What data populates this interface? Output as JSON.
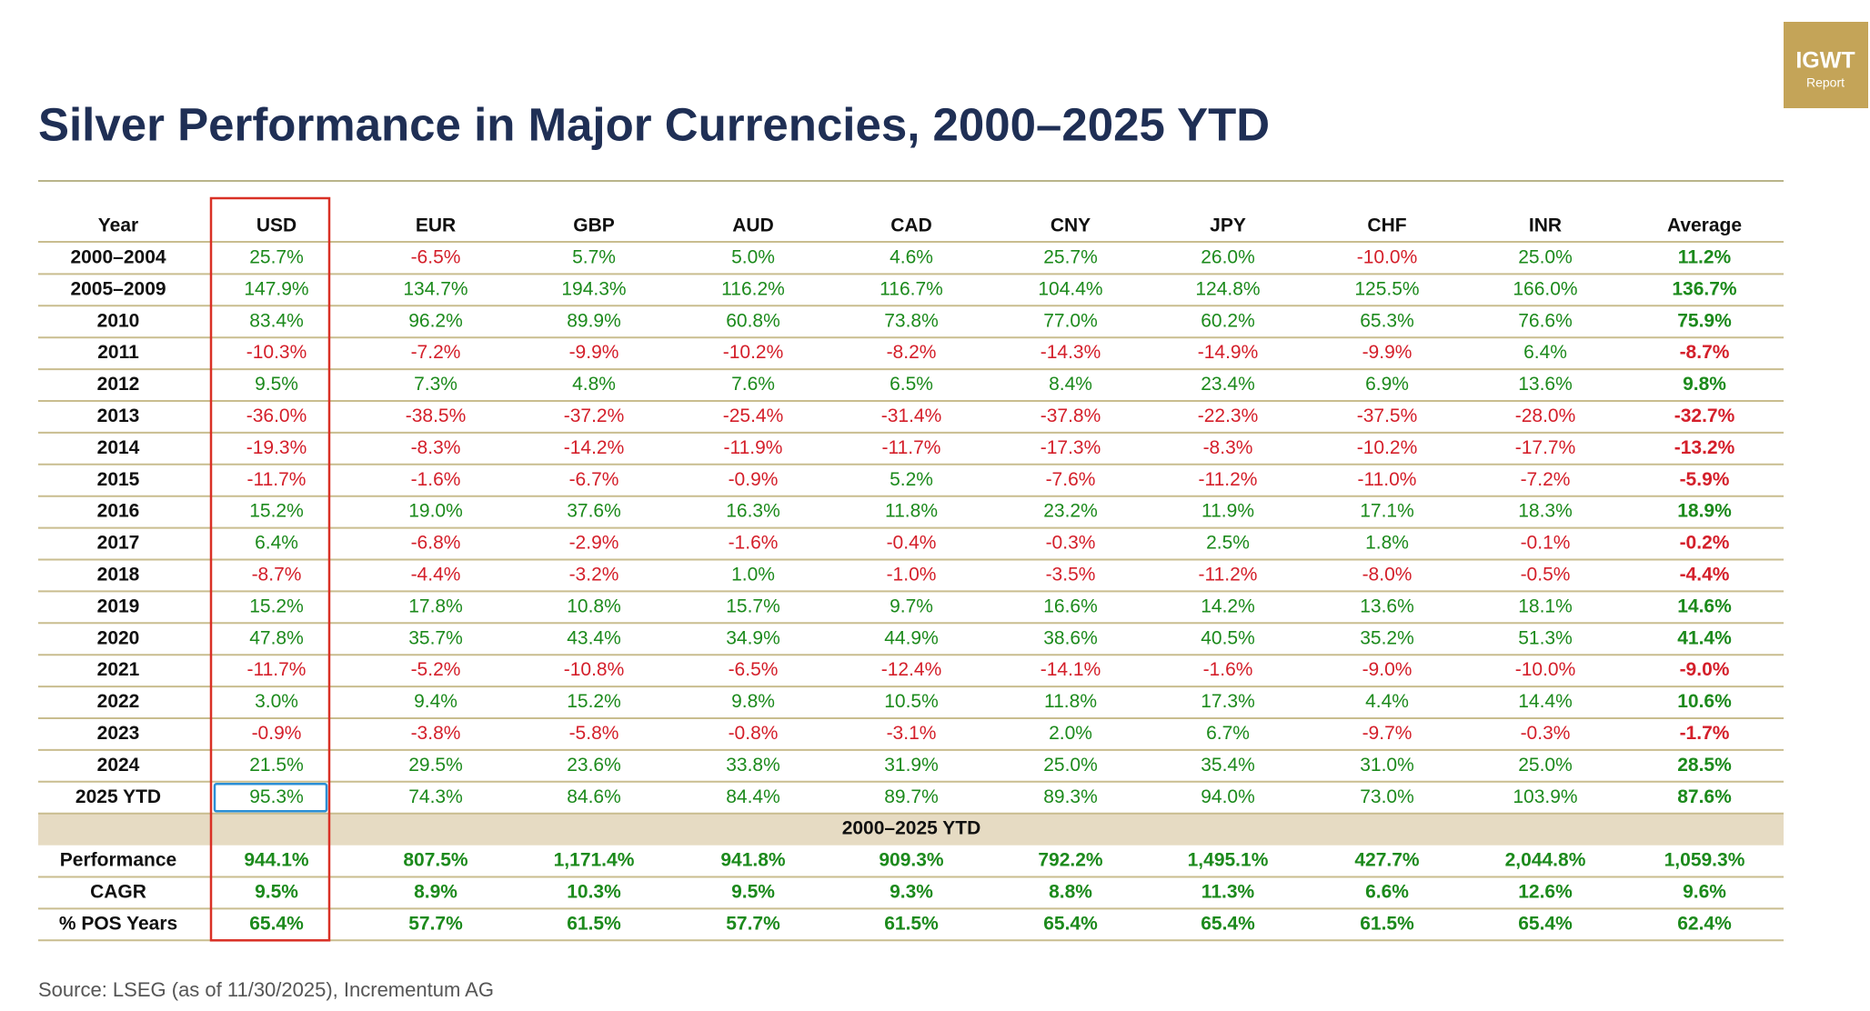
{
  "logo": {
    "title": "IGWT",
    "subtitle": "Report"
  },
  "title": "Silver Performance in Major Currencies, 2000–2025 YTD",
  "table": {
    "columns": [
      "Year",
      "USD",
      "EUR",
      "GBP",
      "AUD",
      "CAD",
      "CNY",
      "JPY",
      "CHF",
      "INR",
      "Average"
    ],
    "rows": [
      [
        "2000–2004",
        "25.7%",
        "-6.5%",
        "5.7%",
        "5.0%",
        "4.6%",
        "25.7%",
        "26.0%",
        "-10.0%",
        "25.0%",
        "11.2%"
      ],
      [
        "2005–2009",
        "147.9%",
        "134.7%",
        "194.3%",
        "116.2%",
        "116.7%",
        "104.4%",
        "124.8%",
        "125.5%",
        "166.0%",
        "136.7%"
      ],
      [
        "2010",
        "83.4%",
        "96.2%",
        "89.9%",
        "60.8%",
        "73.8%",
        "77.0%",
        "60.2%",
        "65.3%",
        "76.6%",
        "75.9%"
      ],
      [
        "2011",
        "-10.3%",
        "-7.2%",
        "-9.9%",
        "-10.2%",
        "-8.2%",
        "-14.3%",
        "-14.9%",
        "-9.9%",
        "6.4%",
        "-8.7%"
      ],
      [
        "2012",
        "9.5%",
        "7.3%",
        "4.8%",
        "7.6%",
        "6.5%",
        "8.4%",
        "23.4%",
        "6.9%",
        "13.6%",
        "9.8%"
      ],
      [
        "2013",
        "-36.0%",
        "-38.5%",
        "-37.2%",
        "-25.4%",
        "-31.4%",
        "-37.8%",
        "-22.3%",
        "-37.5%",
        "-28.0%",
        "-32.7%"
      ],
      [
        "2014",
        "-19.3%",
        "-8.3%",
        "-14.2%",
        "-11.9%",
        "-11.7%",
        "-17.3%",
        "-8.3%",
        "-10.2%",
        "-17.7%",
        "-13.2%"
      ],
      [
        "2015",
        "-11.7%",
        "-1.6%",
        "-6.7%",
        "-0.9%",
        "5.2%",
        "-7.6%",
        "-11.2%",
        "-11.0%",
        "-7.2%",
        "-5.9%"
      ],
      [
        "2016",
        "15.2%",
        "19.0%",
        "37.6%",
        "16.3%",
        "11.8%",
        "23.2%",
        "11.9%",
        "17.1%",
        "18.3%",
        "18.9%"
      ],
      [
        "2017",
        "6.4%",
        "-6.8%",
        "-2.9%",
        "-1.6%",
        "-0.4%",
        "-0.3%",
        "2.5%",
        "1.8%",
        "-0.1%",
        "-0.2%"
      ],
      [
        "2018",
        "-8.7%",
        "-4.4%",
        "-3.2%",
        "1.0%",
        "-1.0%",
        "-3.5%",
        "-11.2%",
        "-8.0%",
        "-0.5%",
        "-4.4%"
      ],
      [
        "2019",
        "15.2%",
        "17.8%",
        "10.8%",
        "15.7%",
        "9.7%",
        "16.6%",
        "14.2%",
        "13.6%",
        "18.1%",
        "14.6%"
      ],
      [
        "2020",
        "47.8%",
        "35.7%",
        "43.4%",
        "34.9%",
        "44.9%",
        "38.6%",
        "40.5%",
        "35.2%",
        "51.3%",
        "41.4%"
      ],
      [
        "2021",
        "-11.7%",
        "-5.2%",
        "-10.8%",
        "-6.5%",
        "-12.4%",
        "-14.1%",
        "-1.6%",
        "-9.0%",
        "-10.0%",
        "-9.0%"
      ],
      [
        "2022",
        "3.0%",
        "9.4%",
        "15.2%",
        "9.8%",
        "10.5%",
        "11.8%",
        "17.3%",
        "4.4%",
        "14.4%",
        "10.6%"
      ],
      [
        "2023",
        "-0.9%",
        "-3.8%",
        "-5.8%",
        "-0.8%",
        "-3.1%",
        "2.0%",
        "6.7%",
        "-9.7%",
        "-0.3%",
        "-1.7%"
      ],
      [
        "2024",
        "21.5%",
        "29.5%",
        "23.6%",
        "33.8%",
        "31.9%",
        "25.0%",
        "35.4%",
        "31.0%",
        "25.0%",
        "28.5%"
      ],
      [
        "2025 YTD",
        "95.3%",
        "74.3%",
        "84.6%",
        "84.4%",
        "89.7%",
        "89.3%",
        "94.0%",
        "73.0%",
        "103.9%",
        "87.6%"
      ]
    ],
    "section_label": "2000–2025 YTD",
    "summary_rows": [
      [
        "Performance",
        "944.1%",
        "807.5%",
        "1,171.4%",
        "941.8%",
        "909.3%",
        "792.2%",
        "1,495.1%",
        "427.7%",
        "2,044.8%",
        "1,059.3%"
      ],
      [
        "CAGR",
        "9.5%",
        "8.9%",
        "10.3%",
        "9.5%",
        "9.3%",
        "8.8%",
        "11.3%",
        "6.6%",
        "12.6%",
        "9.6%"
      ],
      [
        "% POS Years",
        "65.4%",
        "57.7%",
        "61.5%",
        "57.7%",
        "61.5%",
        "65.4%",
        "65.4%",
        "61.5%",
        "65.4%",
        "62.4%"
      ]
    ]
  },
  "source": "Source: LSEG (as of 11/30/2025), Incrementum AG"
}
